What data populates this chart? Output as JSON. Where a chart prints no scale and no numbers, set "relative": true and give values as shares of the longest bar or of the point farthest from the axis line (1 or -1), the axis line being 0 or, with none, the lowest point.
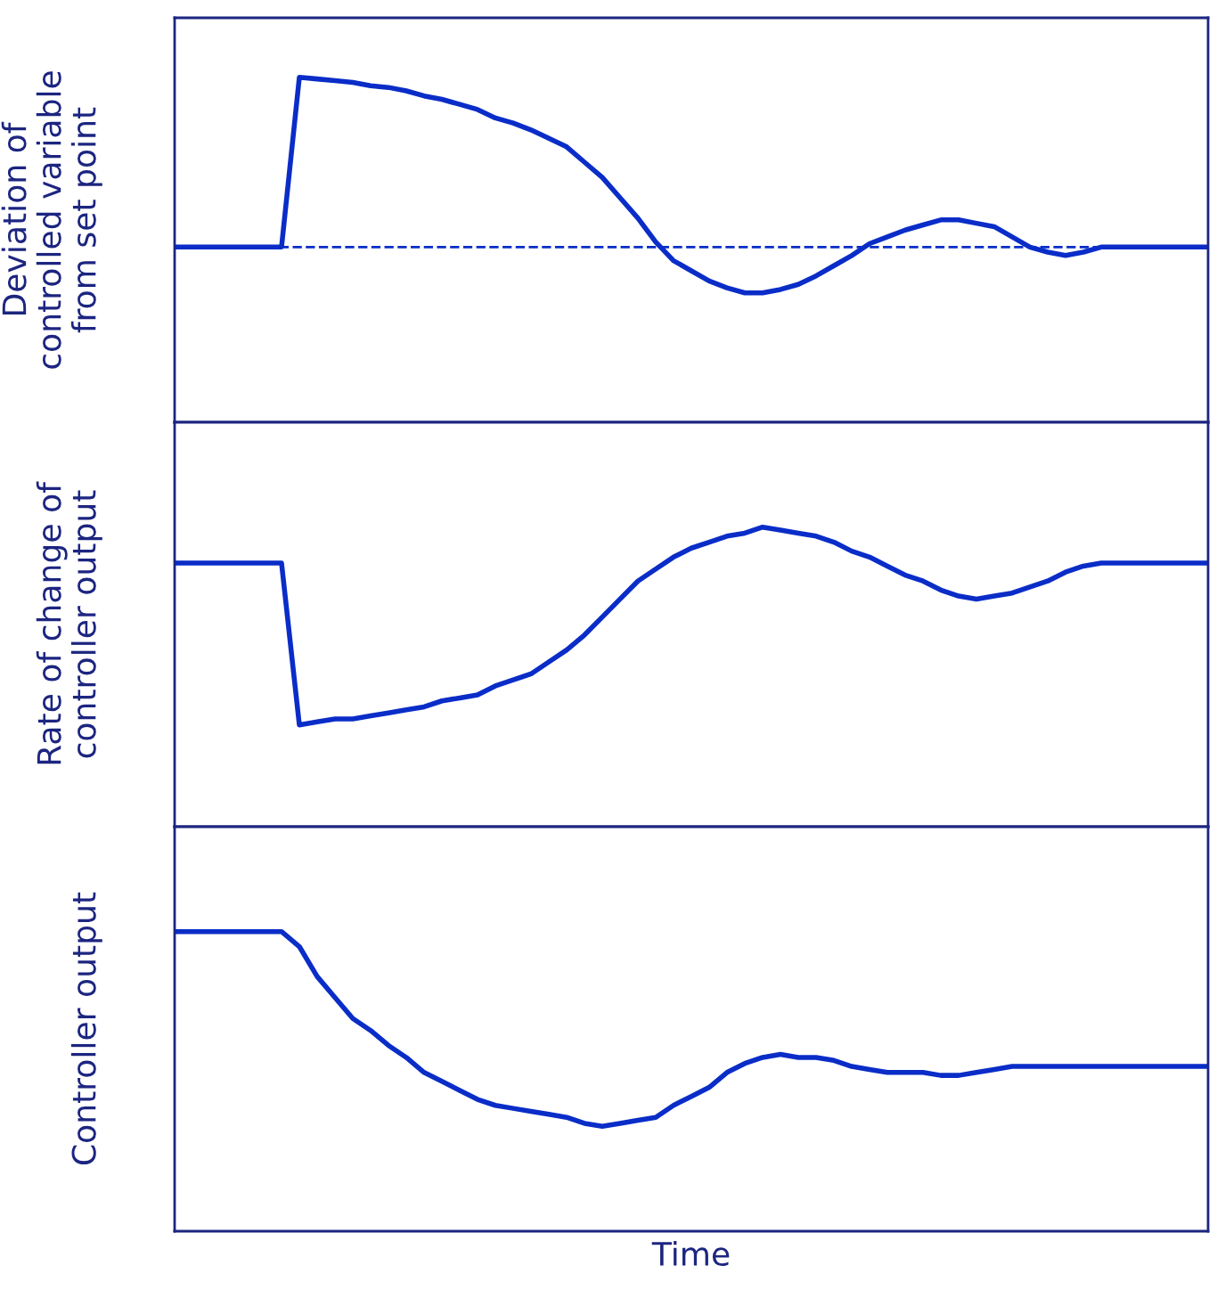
{
  "chart_data": [
    {
      "type": "line",
      "relative": true,
      "ylabel": "Deviation of\ncontrolled variable\nfrom set point",
      "marker": "none",
      "line_style": "solid",
      "categories": [
        null,
        null,
        null,
        null,
        null,
        null,
        null,
        null,
        null,
        null,
        null,
        null,
        null,
        null,
        null,
        null,
        null,
        null,
        null,
        null,
        null,
        null,
        null,
        null,
        null,
        null,
        null,
        null,
        null,
        null,
        null,
        null,
        null,
        null,
        null,
        null,
        null,
        null,
        null,
        null,
        null,
        null,
        null,
        null,
        null,
        null,
        null,
        null,
        null,
        null,
        null,
        null,
        null,
        null,
        null,
        null,
        null,
        null,
        null
      ],
      "series": [
        {
          "color": "#0a2dc8",
          "values": [
            0,
            0,
            0,
            0,
            0,
            0,
            0,
            1.0,
            0.99,
            0.98,
            0.97,
            0.95,
            0.94,
            0.92,
            0.89,
            0.87,
            0.84,
            0.81,
            0.76,
            0.73,
            0.69,
            0.64,
            0.59,
            0.5,
            0.41,
            0.29,
            0.17,
            0.03,
            -0.08,
            -0.14,
            -0.2,
            -0.24,
            -0.27,
            -0.27,
            -0.25,
            -0.22,
            -0.17,
            -0.11,
            -0.05,
            0.02,
            0.06,
            0.1,
            0.13,
            0.16,
            0.16,
            0.14,
            0.12,
            0.06,
            0.0,
            -0.03,
            -0.05,
            -0.03,
            0.0,
            0,
            0,
            0,
            0,
            0,
            0
          ]
        }
      ],
      "ref_lines": [
        {
          "axis": "y",
          "value": 0,
          "color": "#0a2dc8",
          "line_style": "dashed"
        }
      ]
    },
    {
      "type": "line",
      "relative": true,
      "ylabel": "Rate of change of\ncontroller output",
      "marker": "none",
      "line_style": "solid",
      "categories": [
        null,
        null,
        null,
        null,
        null,
        null,
        null,
        null,
        null,
        null,
        null,
        null,
        null,
        null,
        null,
        null,
        null,
        null,
        null,
        null,
        null,
        null,
        null,
        null,
        null,
        null,
        null,
        null,
        null,
        null,
        null,
        null,
        null,
        null,
        null,
        null,
        null,
        null,
        null,
        null,
        null,
        null,
        null,
        null,
        null,
        null,
        null,
        null,
        null,
        null,
        null,
        null,
        null,
        null,
        null,
        null,
        null,
        null,
        null
      ],
      "series": [
        {
          "color": "#0a2dc8",
          "values": [
            0.88,
            0.88,
            0.88,
            0.88,
            0.88,
            0.88,
            0.88,
            0.34,
            0.35,
            0.36,
            0.36,
            0.37,
            0.38,
            0.39,
            0.4,
            0.42,
            0.43,
            0.44,
            0.47,
            0.49,
            0.51,
            0.55,
            0.59,
            0.64,
            0.7,
            0.76,
            0.82,
            0.86,
            0.9,
            0.93,
            0.95,
            0.97,
            0.98,
            1.0,
            0.99,
            0.98,
            0.97,
            0.95,
            0.92,
            0.9,
            0.87,
            0.84,
            0.82,
            0.79,
            0.77,
            0.76,
            0.77,
            0.78,
            0.8,
            0.82,
            0.85,
            0.87,
            0.88,
            0.88,
            0.88,
            0.88,
            0.88,
            0.88,
            0.88
          ]
        }
      ]
    },
    {
      "type": "line",
      "relative": true,
      "ylabel": "Controller output",
      "xlabel": "Time",
      "marker": "none",
      "line_style": "solid",
      "categories": [
        null,
        null,
        null,
        null,
        null,
        null,
        null,
        null,
        null,
        null,
        null,
        null,
        null,
        null,
        null,
        null,
        null,
        null,
        null,
        null,
        null,
        null,
        null,
        null,
        null,
        null,
        null,
        null,
        null,
        null,
        null,
        null,
        null,
        null,
        null,
        null,
        null,
        null,
        null,
        null,
        null,
        null,
        null,
        null,
        null,
        null,
        null,
        null,
        null,
        null,
        null,
        null,
        null,
        null,
        null,
        null,
        null,
        null,
        null
      ],
      "series": [
        {
          "color": "#0a2dc8",
          "values": [
            1.0,
            1.0,
            1.0,
            1.0,
            1.0,
            1.0,
            1.0,
            0.95,
            0.85,
            0.78,
            0.71,
            0.67,
            0.62,
            0.58,
            0.53,
            0.5,
            0.47,
            0.44,
            0.42,
            0.41,
            0.4,
            0.39,
            0.38,
            0.36,
            0.35,
            0.36,
            0.37,
            0.38,
            0.42,
            0.45,
            0.48,
            0.53,
            0.56,
            0.58,
            0.59,
            0.58,
            0.58,
            0.57,
            0.55,
            0.54,
            0.53,
            0.53,
            0.53,
            0.52,
            0.52,
            0.53,
            0.54,
            0.55,
            0.55,
            0.55,
            0.55,
            0.55,
            0.55,
            0.55,
            0.55,
            0.55,
            0.55,
            0.55,
            0.55
          ]
        }
      ]
    }
  ]
}
